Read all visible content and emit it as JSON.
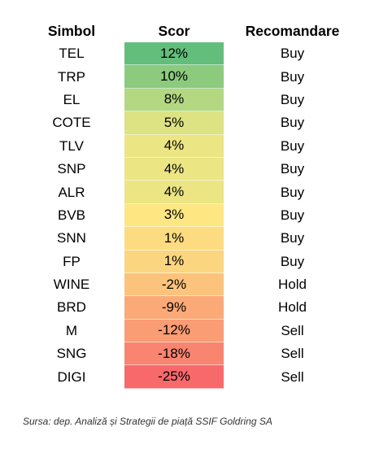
{
  "chart_data": {
    "type": "table",
    "columns": [
      "Simbol",
      "Scor",
      "Recomandare"
    ],
    "rows": [
      {
        "symbol": "TEL",
        "score": "12%",
        "value": 12,
        "recommendation": "Buy",
        "color": "#63be7b"
      },
      {
        "symbol": "TRP",
        "score": "10%",
        "value": 10,
        "recommendation": "Buy",
        "color": "#8ccb7e"
      },
      {
        "symbol": "EL",
        "score": "8%",
        "value": 8,
        "recommendation": "Buy",
        "color": "#b3d881"
      },
      {
        "symbol": "COTE",
        "score": "5%",
        "value": 5,
        "recommendation": "Buy",
        "color": "#dde283"
      },
      {
        "symbol": "TLV",
        "score": "4%",
        "value": 4,
        "recommendation": "Buy",
        "color": "#ebe583"
      },
      {
        "symbol": "SNP",
        "score": "4%",
        "value": 4,
        "recommendation": "Buy",
        "color": "#ebe583"
      },
      {
        "symbol": "ALR",
        "score": "4%",
        "value": 4,
        "recommendation": "Buy",
        "color": "#ebe583"
      },
      {
        "symbol": "BVB",
        "score": "3%",
        "value": 3,
        "recommendation": "Buy",
        "color": "#fee783"
      },
      {
        "symbol": "SNN",
        "score": "1%",
        "value": 1,
        "recommendation": "Buy",
        "color": "#fddc81"
      },
      {
        "symbol": "FP",
        "score": "1%",
        "value": 1,
        "recommendation": "Buy",
        "color": "#fcd580"
      },
      {
        "symbol": "WINE",
        "score": "-2%",
        "value": -2,
        "recommendation": "Hold",
        "color": "#fcc37c"
      },
      {
        "symbol": "BRD",
        "score": "-9%",
        "value": -9,
        "recommendation": "Hold",
        "color": "#fbaa77"
      },
      {
        "symbol": "M",
        "score": "-12%",
        "value": -12,
        "recommendation": "Sell",
        "color": "#fa9c74"
      },
      {
        "symbol": "SNG",
        "score": "-18%",
        "value": -18,
        "recommendation": "Sell",
        "color": "#f98470"
      },
      {
        "symbol": "DIGI",
        "score": "-25%",
        "value": -25,
        "recommendation": "Sell",
        "color": "#f8696b"
      }
    ],
    "source": "Sursa: dep. Analiză și Strategii de piață SSIF Goldring SA"
  }
}
